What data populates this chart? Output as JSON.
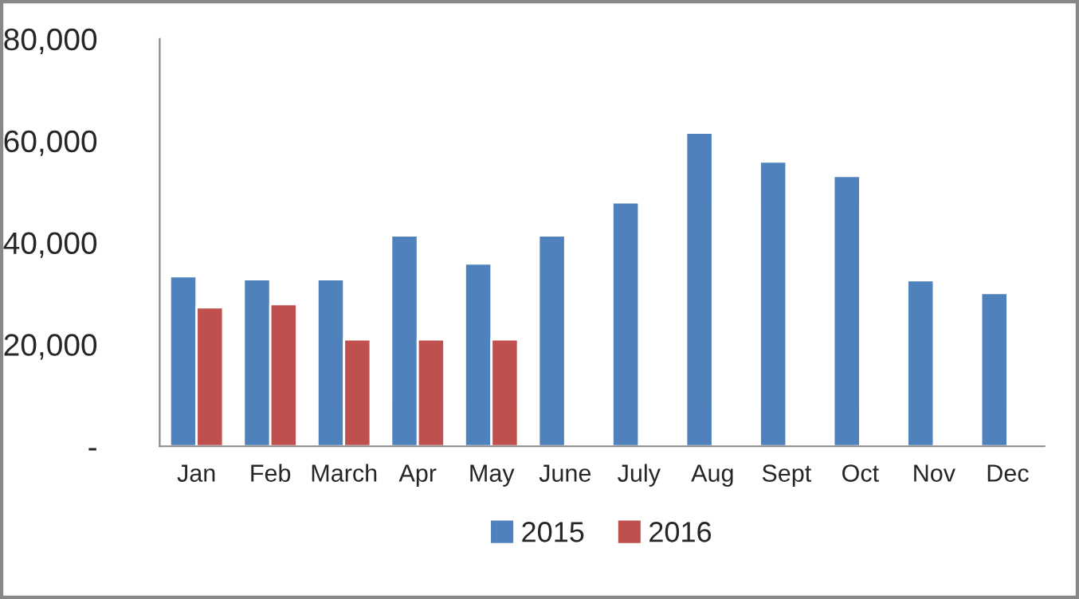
{
  "chart_data": {
    "type": "bar",
    "categories": [
      "Jan",
      "Feb",
      "March",
      "Apr",
      "May",
      "June",
      "July",
      "Aug",
      "Sept",
      "Oct",
      "Nov",
      "Dec"
    ],
    "series": [
      {
        "name": "2015",
        "color": "#4f81bd",
        "values": [
          33400,
          32800,
          32800,
          41400,
          35900,
          41400,
          47900,
          61600,
          55900,
          53100,
          32600,
          30100
        ]
      },
      {
        "name": "2016",
        "color": "#c0504d",
        "values": [
          27300,
          27900,
          21000,
          21000,
          21000,
          null,
          null,
          null,
          null,
          null,
          null,
          null
        ]
      }
    ],
    "ylim": [
      0,
      80000
    ],
    "yticks": [
      {
        "value": 0,
        "label": "-"
      },
      {
        "value": 20000,
        "label": "20,000"
      },
      {
        "value": 40000,
        "label": "40,000"
      },
      {
        "value": 60000,
        "label": "60,000"
      },
      {
        "value": 80000,
        "label": "80,000"
      }
    ],
    "grid": false,
    "legend": "bottom"
  }
}
